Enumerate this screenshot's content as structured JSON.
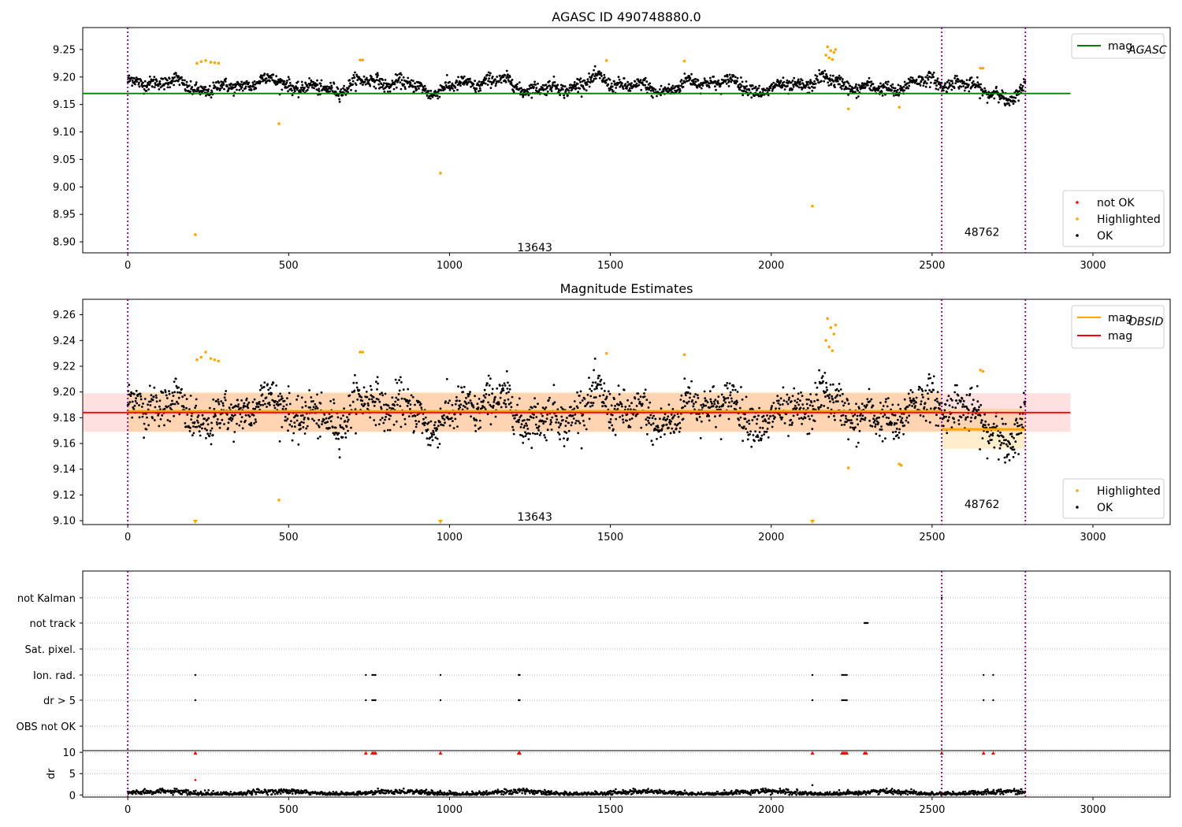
{
  "chart_data": [
    {
      "type": "scatter",
      "title": "AGASC ID 490748880.0",
      "xlim": [
        -140,
        3240
      ],
      "ylim": [
        8.88,
        9.29
      ],
      "xticks": [
        0,
        500,
        1000,
        1500,
        2000,
        2500,
        3000
      ],
      "yticks": [
        8.9,
        8.95,
        9.0,
        9.05,
        9.1,
        9.15,
        9.2,
        9.25
      ],
      "ytick_labels": [
        "8.90",
        "8.95",
        "9.00",
        "9.05",
        "9.10",
        "9.15",
        "9.20",
        "9.25"
      ],
      "grid": false,
      "obs_boundaries": [
        0,
        2530,
        2790
      ],
      "obsid_labels": [
        {
          "text": "13643",
          "x": 1265,
          "y": 8.89
        },
        {
          "text": "48762",
          "x": 2655,
          "y": 8.918
        }
      ],
      "reference_lines": [
        {
          "name": "mag_AGASC",
          "y": 9.17,
          "x_range": [
            -140,
            2930
          ],
          "color": "#008000"
        }
      ],
      "highlighted_points": [
        [
          210,
          8.913
        ],
        [
          470,
          9.115
        ],
        [
          972,
          9.025
        ],
        [
          2128,
          8.965
        ],
        [
          2240,
          9.142
        ],
        [
          2398,
          9.145
        ],
        [
          215,
          9.225
        ],
        [
          228,
          9.228
        ],
        [
          242,
          9.23
        ],
        [
          258,
          9.227
        ],
        [
          270,
          9.226
        ],
        [
          282,
          9.225
        ],
        [
          722,
          9.231
        ],
        [
          730,
          9.231
        ],
        [
          1488,
          9.23
        ],
        [
          1730,
          9.229
        ],
        [
          2650,
          9.216
        ],
        [
          2658,
          9.216
        ],
        [
          2170,
          9.24
        ],
        [
          2175,
          9.255
        ],
        [
          2180,
          9.235
        ],
        [
          2185,
          9.248
        ],
        [
          2190,
          9.232
        ],
        [
          2195,
          9.245
        ],
        [
          2200,
          9.25
        ]
      ],
      "legend": {
        "lines_location": "upper-right",
        "lines": [
          {
            "label": "mag",
            "subscript": "AGASC",
            "color": "#008000"
          }
        ],
        "points_location": "lower-right",
        "points": [
          {
            "label": "not OK",
            "color": "#ff0000"
          },
          {
            "label": "Highlighted",
            "color": "#ffa500"
          },
          {
            "label": "OK",
            "color": "#000000"
          }
        ]
      }
    },
    {
      "type": "scatter",
      "title": "Magnitude Estimates",
      "xlim": [
        -140,
        3240
      ],
      "ylim": [
        9.097,
        9.272
      ],
      "xticks": [
        0,
        500,
        1000,
        1500,
        2000,
        2500,
        3000
      ],
      "yticks": [
        9.1,
        9.12,
        9.14,
        9.16,
        9.18,
        9.2,
        9.22,
        9.24,
        9.26
      ],
      "ytick_labels": [
        "9.10",
        "9.12",
        "9.14",
        "9.16",
        "9.18",
        "9.20",
        "9.22",
        "9.24",
        "9.26"
      ],
      "grid": false,
      "obs_boundaries": [
        0,
        2530,
        2790
      ],
      "obsid_labels": [
        {
          "text": "13643",
          "x": 1265,
          "y": 9.103
        },
        {
          "text": "48762",
          "x": 2655,
          "y": 9.113
        }
      ],
      "mag": {
        "value": 9.184,
        "band": [
          9.169,
          9.199
        ],
        "x_range": [
          -140,
          2930
        ],
        "color": "#ff0000"
      },
      "mag_obsid": [
        {
          "x_range": [
            0,
            2530
          ],
          "value": 9.185,
          "band": [
            9.169,
            9.2
          ],
          "color": "#ffa500"
        },
        {
          "x_range": [
            2530,
            2790
          ],
          "value": 9.171,
          "band": [
            9.156,
            9.187
          ],
          "color": "#ffa500"
        }
      ],
      "highlighted_points": [
        [
          470,
          9.116
        ],
        [
          2240,
          9.141
        ],
        [
          2398,
          9.144
        ],
        [
          2404,
          9.143
        ],
        [
          215,
          9.225
        ],
        [
          228,
          9.227
        ],
        [
          242,
          9.231
        ],
        [
          258,
          9.226
        ],
        [
          270,
          9.225
        ],
        [
          282,
          9.224
        ],
        [
          722,
          9.231
        ],
        [
          730,
          9.231
        ],
        [
          1488,
          9.23
        ],
        [
          1730,
          9.229
        ],
        [
          2650,
          9.217
        ],
        [
          2658,
          9.216
        ],
        [
          2170,
          9.24
        ],
        [
          2175,
          9.257
        ],
        [
          2180,
          9.235
        ],
        [
          2185,
          9.25
        ],
        [
          2190,
          9.232
        ],
        [
          2195,
          9.245
        ],
        [
          2200,
          9.252
        ]
      ],
      "below_range_markers": [
        210,
        972,
        2128
      ],
      "legend": {
        "lines_location": "upper-right",
        "lines": [
          {
            "label": "mag",
            "subscript": "OBSID",
            "color": "#ffa500"
          },
          {
            "label": "mag",
            "subscript": "",
            "color": "#ff0000"
          }
        ],
        "points_location": "lower-right",
        "points": [
          {
            "label": "Highlighted",
            "color": "#ffa500"
          },
          {
            "label": "OK",
            "color": "#000000"
          }
        ]
      }
    },
    {
      "type": "scatter",
      "title": "",
      "xlim": [
        -140,
        3240
      ],
      "xticks": [
        0,
        500,
        1000,
        1500,
        2000,
        2500,
        3000
      ],
      "obs_boundaries": [
        0,
        2530,
        2790
      ],
      "flag_rows": [
        "not Kalman",
        "not track",
        "Sat. pixel.",
        "Ion. rad.",
        "dr > 5",
        "OBS not OK"
      ],
      "flag_points": {
        "not Kalman": [
          2530
        ],
        "not track": [
          2290,
          2293,
          2296,
          2300
        ],
        "Sat. pixel.": [],
        "Ion. rad.": [
          210,
          740,
          760,
          765,
          770,
          972,
          1215,
          1218,
          2128,
          2220,
          2225,
          2230,
          2235,
          2660,
          2690
        ],
        "dr > 5": [
          210,
          740,
          760,
          765,
          770,
          972,
          1215,
          1218,
          2128,
          2220,
          2225,
          2230,
          2235,
          2660,
          2690
        ],
        "OBS not OK": []
      },
      "dr_axis": {
        "ylabel": "dr",
        "ylim": [
          -0.5,
          10.4
        ],
        "yticks": [
          0,
          5,
          10
        ],
        "grid": "y",
        "capped_points_red": [
          210,
          740,
          760,
          765,
          770,
          972,
          1215,
          1218,
          2128,
          2220,
          2225,
          2230,
          2235,
          2290,
          2295,
          2530,
          2660,
          2690
        ],
        "large_points_red": [
          [
            210,
            3.5
          ]
        ],
        "large_points_black": [
          [
            2128,
            2.3
          ]
        ]
      }
    }
  ]
}
